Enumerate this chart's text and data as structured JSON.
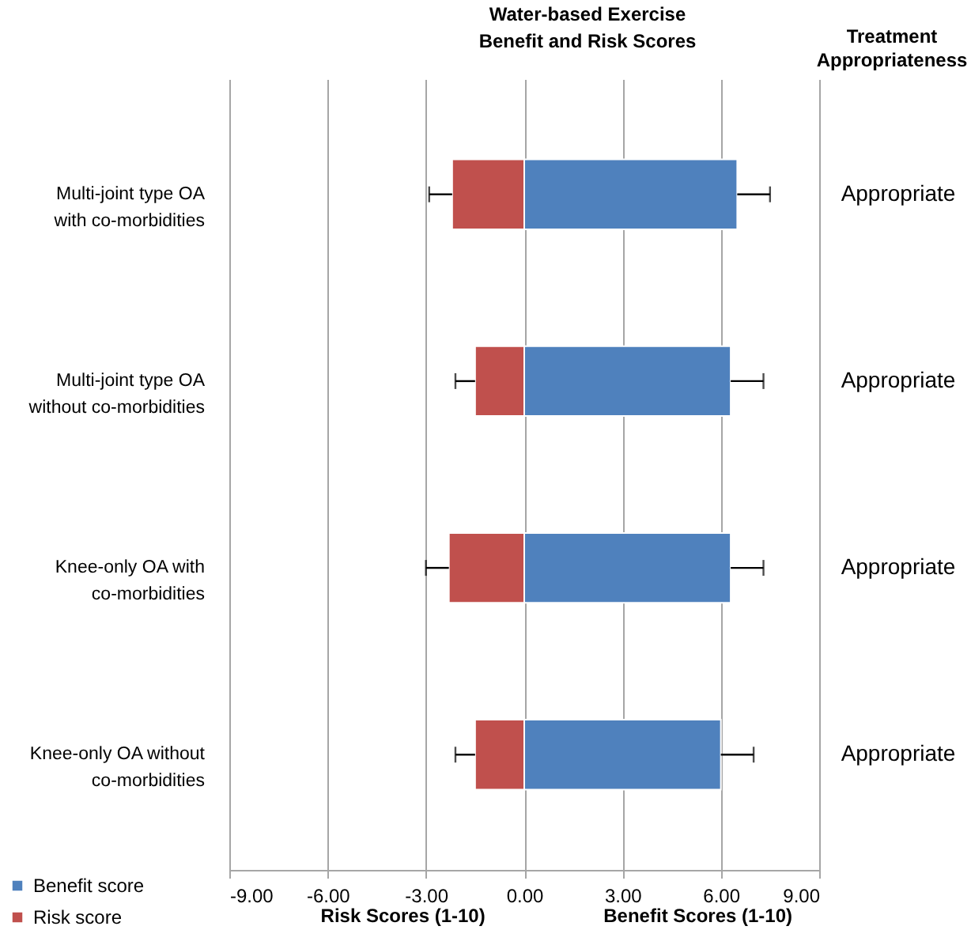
{
  "chart_data": {
    "type": "bar",
    "orientation": "horizontal",
    "stacked": true,
    "title": "Water-based Exercise\nBenefit and Risk Scores",
    "categories": [
      "Multi-joint type OA\nwith co-morbidities",
      "Multi-joint type OA\nwithout co-morbidities",
      "Knee-only OA with\nco-morbidities",
      "Knee-only OA without\nco-morbidities"
    ],
    "series": [
      {
        "name": "Benefit score",
        "color": "#4f81bd",
        "values": [
          6.5,
          6.3,
          6.3,
          6.0
        ],
        "errors": [
          [
            6.5,
            7.5
          ],
          [
            6.3,
            7.3
          ],
          [
            6.3,
            7.3
          ],
          [
            6.0,
            7.0
          ]
        ]
      },
      {
        "name": "Risk score",
        "color": "#c0504d",
        "values": [
          -2.2,
          -1.5,
          -2.3,
          -1.5
        ],
        "errors": [
          [
            -2.9,
            -2.2
          ],
          [
            -2.1,
            -1.5
          ],
          [
            -3.0,
            -2.3
          ],
          [
            -2.1,
            -1.5
          ]
        ]
      }
    ],
    "xlim": [
      -9,
      9
    ],
    "xticks": [
      {
        "value": -9,
        "label": "-9.00"
      },
      {
        "value": -6,
        "label": "-6.00"
      },
      {
        "value": -3,
        "label": "-3.00"
      },
      {
        "value": 0,
        "label": "0.00"
      },
      {
        "value": 3,
        "label": "3.00"
      },
      {
        "value": 6,
        "label": "6.00"
      },
      {
        "value": 9,
        "label": "9.00"
      }
    ],
    "grid": "x",
    "legend": "bottom left",
    "annotations": [
      "Treatment\nAppropriateness",
      "Appropriate",
      "Appropriate",
      "Appropriate",
      "Appropriate",
      "Risk  Scores (1-10)",
      "Benefit Scores (1-10)"
    ]
  }
}
